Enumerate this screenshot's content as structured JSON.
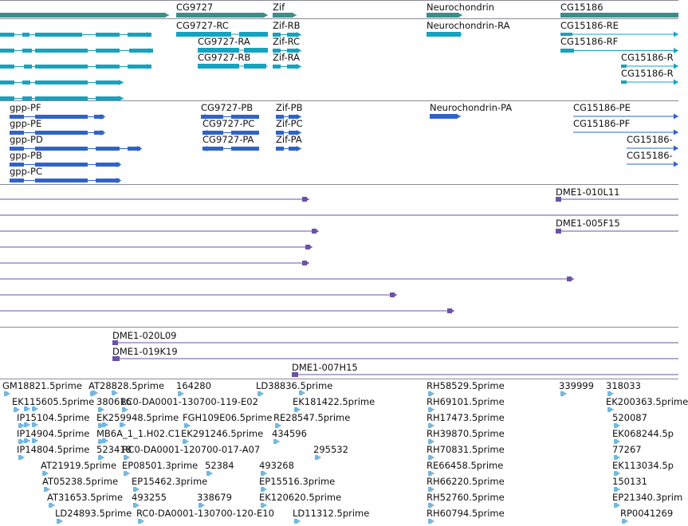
{
  "colors": {
    "gene_track": "#3a8f8a",
    "transcript_teal": "#14a3c1",
    "transcript_blue": "#2f63cc",
    "clone_purple": "#6a52a8",
    "est_light_blue": "#73b8e2",
    "divider": "#8a8a9a"
  },
  "gene_track": {
    "labels": [
      "CG9727",
      "Zif",
      "Neurochondrin",
      "CG15186"
    ]
  },
  "transcripts_a": {
    "labels": [
      "CG9727-RC",
      "Zif-RB",
      "Neurochondrin-RA",
      "CG15186-RE",
      "CG9727-RA",
      "Zif-RC",
      "CG15186-RF",
      "CG9727-RB",
      "Zif-RA",
      "CG15186-R",
      "CG15186-R"
    ]
  },
  "transcripts_b": {
    "labels": [
      "gpp-PF",
      "CG9727-PB",
      "Zif-PB",
      "Neurochondrin-PA",
      "CG15186-PE",
      "gpp-PE",
      "CG9727-PC",
      "Zif-PC",
      "CG15186-PF",
      "gpp-PD",
      "CG9727-PA",
      "Zif-PA",
      "CG15186-",
      "gpp-PB",
      "CG15186-",
      "gpp-PC"
    ]
  },
  "clones_a": {
    "labels": [
      "DME1-010L11",
      "DME1-005F15"
    ]
  },
  "clones_b": {
    "labels": [
      "DME1-020L09",
      "DME1-019K19",
      "DME1-007H15"
    ]
  },
  "ests": {
    "labels": [
      "GM18821.5prime",
      "AT28828.5prime",
      "164280",
      "LD38836.5prime",
      "RH58529.5prime",
      "339999",
      "318033",
      "EK115605.5prime",
      "380616",
      "RC0-DA0001-130700-119-E02",
      "EK181422.5prime",
      "RH69101.5prime",
      "EK200363.5prime",
      "IP15104.5prime",
      "EK259948.5prime",
      "FGH109E06.5prime",
      "RE28547.5prime",
      "RH17473.5prime",
      "520087",
      "IP14904.5prime",
      "MB6A_1_1.H02.C1",
      "EK291246.5prime",
      "434596",
      "RH39870.5prime",
      "EK068244.5p",
      "IP14804.5prime",
      "523418",
      "RC0-DA0001-120700-017-A07",
      "295532",
      "RH70831.5prime",
      "77267",
      "AT21919.5prime",
      "EP08501.3prime",
      "52384",
      "493268",
      "RE66458.5prime",
      "EK113034.5p",
      "AT05238.5prime",
      "EP15462.3prime",
      "EP15516.3prime",
      "RH66220.5prime",
      "150131",
      "AT31653.5prime",
      "493255",
      "338679",
      "EK120620.5prime",
      "RH52760.5prime",
      "EP21340.3prim",
      "LD24893.5prime",
      "RC0-DA0001-130700-120-E10",
      "LD11312.5prime",
      "RH60794.5prime",
      "RP0041269"
    ]
  }
}
